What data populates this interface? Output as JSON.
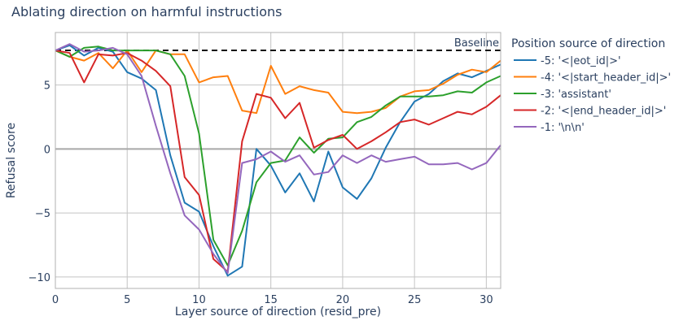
{
  "chart_data": {
    "type": "line",
    "title": "Ablating direction on harmful instructions",
    "xlabel": "Layer source of direction (resid_pre)",
    "ylabel": "Refusal score",
    "xlim": [
      0,
      31
    ],
    "ylim": [
      -10.9,
      9.1
    ],
    "xticks": [
      0,
      5,
      10,
      15,
      20,
      25,
      30
    ],
    "yticks": [
      -10,
      -5,
      0,
      5
    ],
    "ytick_labels": [
      "−10",
      "−5",
      "0",
      "5"
    ],
    "grid": true,
    "legend_title": "Position source of direction",
    "legend_position": "right",
    "baseline": {
      "label": "Baseline",
      "value": 7.7
    },
    "x": [
      0,
      1,
      2,
      3,
      4,
      5,
      6,
      7,
      8,
      9,
      10,
      11,
      12,
      13,
      14,
      15,
      16,
      17,
      18,
      19,
      20,
      21,
      22,
      23,
      24,
      25,
      26,
      27,
      28,
      29,
      30,
      31
    ],
    "series": [
      {
        "name": "-5: '<|eot_id|>'",
        "color": "#1f77b4",
        "values": [
          7.7,
          8.1,
          7.3,
          7.9,
          7.6,
          6.0,
          5.5,
          4.6,
          -0.5,
          -4.2,
          -4.9,
          -7.6,
          -9.9,
          -9.2,
          0.0,
          -1.3,
          -3.4,
          -1.9,
          -4.1,
          -0.2,
          -3.0,
          -3.9,
          -2.3,
          0.1,
          2.1,
          3.7,
          4.3,
          5.3,
          5.9,
          5.6,
          6.1,
          6.6
        ]
      },
      {
        "name": "-4: '<|start_header_id|>'",
        "color": "#ff7f0e",
        "values": [
          7.7,
          7.2,
          6.9,
          7.5,
          6.3,
          7.7,
          6.0,
          7.7,
          7.4,
          7.4,
          5.2,
          5.6,
          5.7,
          3.0,
          2.8,
          6.5,
          4.3,
          4.9,
          4.6,
          4.4,
          2.9,
          2.8,
          2.9,
          3.2,
          4.1,
          4.5,
          4.6,
          5.1,
          5.8,
          6.2,
          6.0,
          6.9
        ]
      },
      {
        "name": "-3: 'assistant'",
        "color": "#2ca02c",
        "values": [
          7.7,
          7.2,
          7.9,
          8.0,
          7.7,
          7.7,
          7.7,
          7.7,
          7.4,
          5.7,
          1.2,
          -7.1,
          -9.1,
          -6.4,
          -2.6,
          -1.1,
          -0.9,
          0.9,
          -0.3,
          0.8,
          0.9,
          2.1,
          2.5,
          3.4,
          4.1,
          4.1,
          4.1,
          4.2,
          4.5,
          4.4,
          5.2,
          5.7
        ]
      },
      {
        "name": "-2: '<|end_header_id|>'",
        "color": "#d62728",
        "values": [
          7.7,
          7.5,
          5.2,
          7.4,
          7.3,
          7.5,
          6.9,
          6.1,
          4.9,
          -2.2,
          -3.6,
          -8.6,
          -9.6,
          0.6,
          4.3,
          4.0,
          2.4,
          3.6,
          0.1,
          0.7,
          1.1,
          0.0,
          0.6,
          1.3,
          2.1,
          2.3,
          1.9,
          2.4,
          2.9,
          2.7,
          3.3,
          4.2
        ]
      },
      {
        "name": "-1: '\\n\\n'",
        "color": "#9467bd",
        "values": [
          7.7,
          8.2,
          7.6,
          7.7,
          7.9,
          7.4,
          5.7,
          1.8,
          -1.9,
          -5.2,
          -6.3,
          -8.2,
          -9.7,
          -1.1,
          -0.8,
          -0.2,
          -1.0,
          -0.5,
          -2.0,
          -1.8,
          -0.5,
          -1.1,
          -0.5,
          -1.0,
          -0.8,
          -0.6,
          -1.2,
          -1.2,
          -1.1,
          -1.6,
          -1.1,
          0.3
        ]
      }
    ]
  }
}
